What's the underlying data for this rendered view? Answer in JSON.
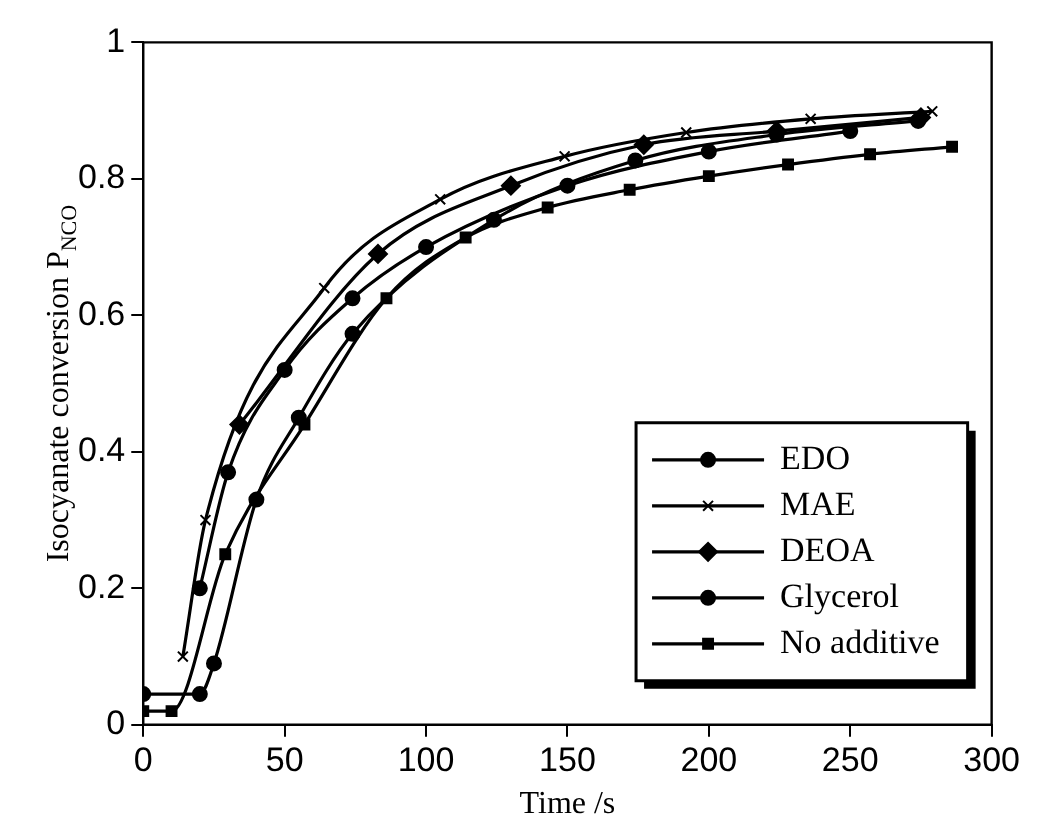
{
  "chart_data": {
    "type": "line",
    "xlabel": "Time /s",
    "ylabel": "Isocyanate conversion P$_{NCO}$",
    "xlim": [
      0,
      300
    ],
    "ylim": [
      0,
      1
    ],
    "xticks": [
      0,
      50,
      100,
      150,
      200,
      250,
      300
    ],
    "yticks": [
      0,
      0.2,
      0.4,
      0.6,
      0.8,
      1
    ],
    "grid": false,
    "legend": "bottom right",
    "line_style": "solid",
    "series": [
      {
        "name": "EDO",
        "color": "#000000",
        "marker": "circle",
        "x": [
          20,
          30,
          50,
          74,
          100,
          150,
          200,
          250
        ],
        "values": [
          0.2,
          0.37,
          0.52,
          0.625,
          0.7,
          0.79,
          0.84,
          0.87
        ]
      },
      {
        "name": "MAE",
        "color": "#000000",
        "marker": "cross",
        "x": [
          14,
          22,
          64,
          105,
          149,
          192,
          236,
          279
        ],
        "values": [
          0.1,
          0.3,
          0.64,
          0.77,
          0.833,
          0.868,
          0.888,
          0.899
        ]
      },
      {
        "name": "DEOA",
        "color": "#000000",
        "marker": "diamond",
        "x": [
          34,
          83,
          130,
          177,
          224,
          275
        ],
        "values": [
          0.44,
          0.69,
          0.79,
          0.85,
          0.87,
          0.89
        ]
      },
      {
        "name": "Glycerol",
        "color": "#000000",
        "marker": "circle",
        "x": [
          0,
          20,
          25,
          40,
          55,
          74,
          124,
          174,
          224,
          274
        ],
        "values": [
          0.045,
          0.045,
          0.09,
          0.33,
          0.45,
          0.573,
          0.74,
          0.827,
          0.865,
          0.885
        ]
      },
      {
        "name": "No additive",
        "color": "#000000",
        "marker": "square",
        "x": [
          0,
          10,
          29,
          57,
          86,
          114,
          143,
          172,
          200,
          228,
          257,
          286
        ],
        "values": [
          0.02,
          0.02,
          0.25,
          0.44,
          0.625,
          0.714,
          0.758,
          0.784,
          0.804,
          0.821,
          0.836,
          0.847
        ]
      }
    ]
  }
}
